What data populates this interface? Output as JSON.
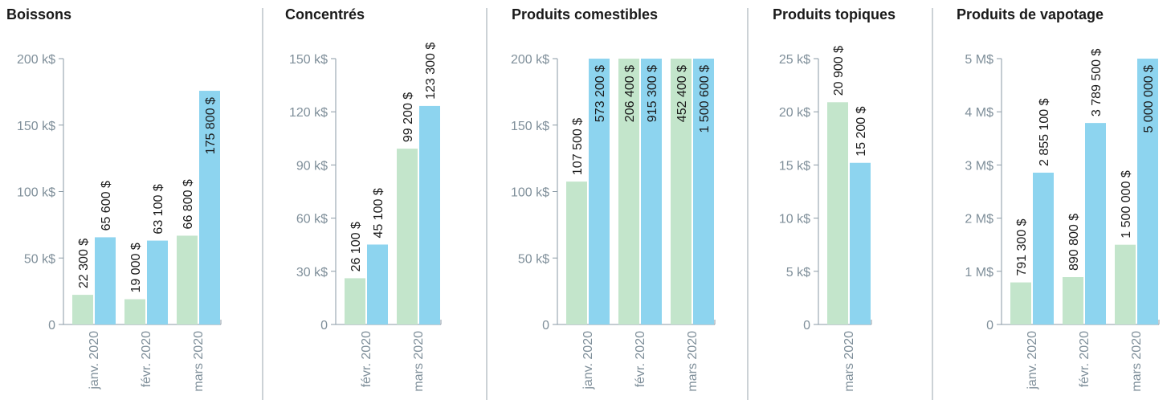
{
  "chart_data": [
    {
      "type": "bar",
      "title": "Boissons",
      "categories": [
        "janv. 2020",
        "févr. 2020",
        "mars 2020"
      ],
      "series": [
        {
          "color": "#c3e5cb",
          "values": [
            22300,
            19000,
            66800
          ],
          "value_labels": [
            "22 300 $",
            "19 000 $",
            "66 800 $"
          ]
        },
        {
          "color": "#8dd4ef",
          "values": [
            65600,
            63100,
            175800
          ],
          "value_labels": [
            "65 600 $",
            "63 100 $",
            "175 800 $"
          ]
        }
      ],
      "ylim": [
        0,
        200000
      ],
      "yticks": [
        0,
        {
          "value": 50000,
          "label": "50 k$"
        },
        {
          "value": 100000,
          "label": "100 k$"
        },
        {
          "value": 150000,
          "label": "150 k$"
        },
        {
          "value": 200000,
          "label": "200 k$"
        }
      ]
    },
    {
      "type": "bar",
      "title": "Concentrés",
      "categories": [
        "févr. 2020",
        "mars 2020"
      ],
      "series": [
        {
          "color": "#c3e5cb",
          "values": [
            26100,
            99200
          ],
          "value_labels": [
            "26 100 $",
            "99 200 $"
          ]
        },
        {
          "color": "#8dd4ef",
          "values": [
            45100,
            123300
          ],
          "value_labels": [
            "45 100 $",
            "123 300 $"
          ]
        }
      ],
      "ylim": [
        0,
        150000
      ],
      "yticks": [
        0,
        {
          "value": 30000,
          "label": "30 k$"
        },
        {
          "value": 60000,
          "label": "60 k$"
        },
        {
          "value": 90000,
          "label": "90 k$"
        },
        {
          "value": 120000,
          "label": "120 k$"
        },
        {
          "value": 150000,
          "label": "150 k$"
        }
      ]
    },
    {
      "type": "bar",
      "title": "Produits comestibles",
      "categories": [
        "janv. 2020",
        "févr. 2020",
        "mars 2020"
      ],
      "series": [
        {
          "color": "#c3e5cb",
          "values": [
            107500,
            206400,
            452400
          ],
          "value_labels": [
            "107 500 $",
            "206 400 $",
            "452 400 $"
          ]
        },
        {
          "color": "#8dd4ef",
          "values": [
            573200,
            915300,
            1500600
          ],
          "value_labels": [
            "573 200 $",
            "915 300 $",
            "1 500 600 $"
          ]
        }
      ],
      "ylim": [
        0,
        200000
      ],
      "yticks": [
        0,
        {
          "value": 50000,
          "label": "50 k$"
        },
        {
          "value": 100000,
          "label": "100 k$"
        },
        {
          "value": 150000,
          "label": "150 k$"
        },
        {
          "value": 200000,
          "label": "200 k$"
        }
      ]
    },
    {
      "type": "bar",
      "title": "Produits topiques",
      "categories": [
        "mars 2020"
      ],
      "series": [
        {
          "color": "#c3e5cb",
          "values": [
            20900
          ],
          "value_labels": [
            "20 900 $"
          ]
        },
        {
          "color": "#8dd4ef",
          "values": [
            15200
          ],
          "value_labels": [
            "15 200 $"
          ]
        }
      ],
      "ylim": [
        0,
        25000
      ],
      "yticks": [
        0,
        {
          "value": 5000,
          "label": "5 k$"
        },
        {
          "value": 10000,
          "label": "10 k$"
        },
        {
          "value": 15000,
          "label": "15 k$"
        },
        {
          "value": 20000,
          "label": "20 k$"
        },
        {
          "value": 25000,
          "label": "25 k$"
        }
      ]
    },
    {
      "type": "bar",
      "title": "Produits de vapotage",
      "categories": [
        "janv. 2020",
        "févr. 2020",
        "mars 2020"
      ],
      "series": [
        {
          "color": "#c3e5cb",
          "values": [
            791300,
            890800,
            1500000
          ],
          "value_labels": [
            "791 300 $",
            "890 800 $",
            "1 500 000 $"
          ]
        },
        {
          "color": "#8dd4ef",
          "values": [
            2855100,
            3789500,
            5000000
          ],
          "value_labels": [
            "2 855 100 $",
            "3 789 500 $",
            "5 000 000 $"
          ]
        }
      ],
      "ylim": [
        0,
        5000000
      ],
      "yticks": [
        0,
        {
          "value": 1000000,
          "label": "1 M$"
        },
        {
          "value": 2000000,
          "label": "2 M$"
        },
        {
          "value": 3000000,
          "label": "3 M$"
        },
        {
          "value": 4000000,
          "label": "4 M$"
        },
        {
          "value": 5000000,
          "label": "5 M$"
        }
      ]
    }
  ]
}
